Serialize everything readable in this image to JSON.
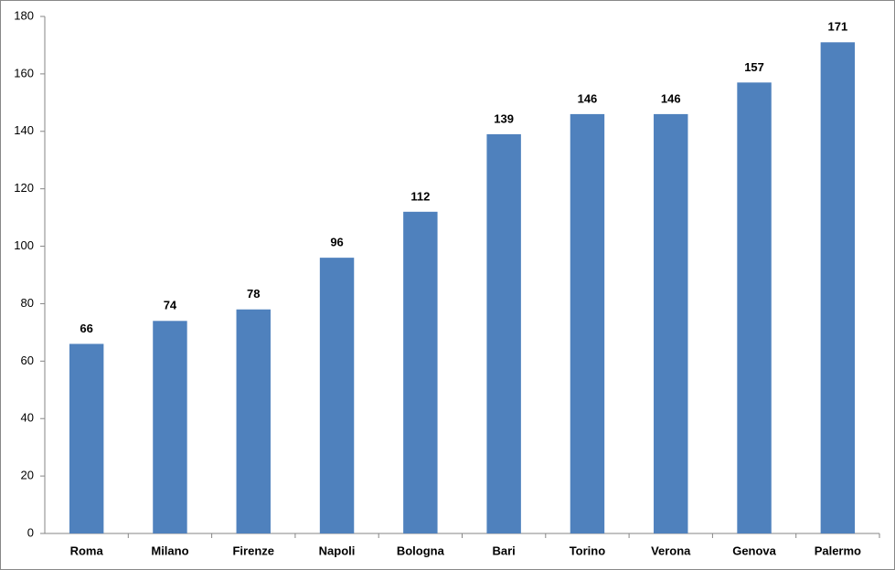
{
  "chart_data": {
    "type": "bar",
    "categories": [
      "Roma",
      "Milano",
      "Firenze",
      "Napoli",
      "Bologna",
      "Bari",
      "Torino",
      "Verona",
      "Genova",
      "Palermo"
    ],
    "values": [
      66,
      74,
      78,
      96,
      112,
      139,
      146,
      146,
      157,
      171
    ],
    "color": "#4f81bd",
    "ylim": [
      0,
      180
    ],
    "yticks": [
      0,
      20,
      40,
      60,
      80,
      100,
      120,
      140,
      160,
      180
    ],
    "grid": false
  }
}
